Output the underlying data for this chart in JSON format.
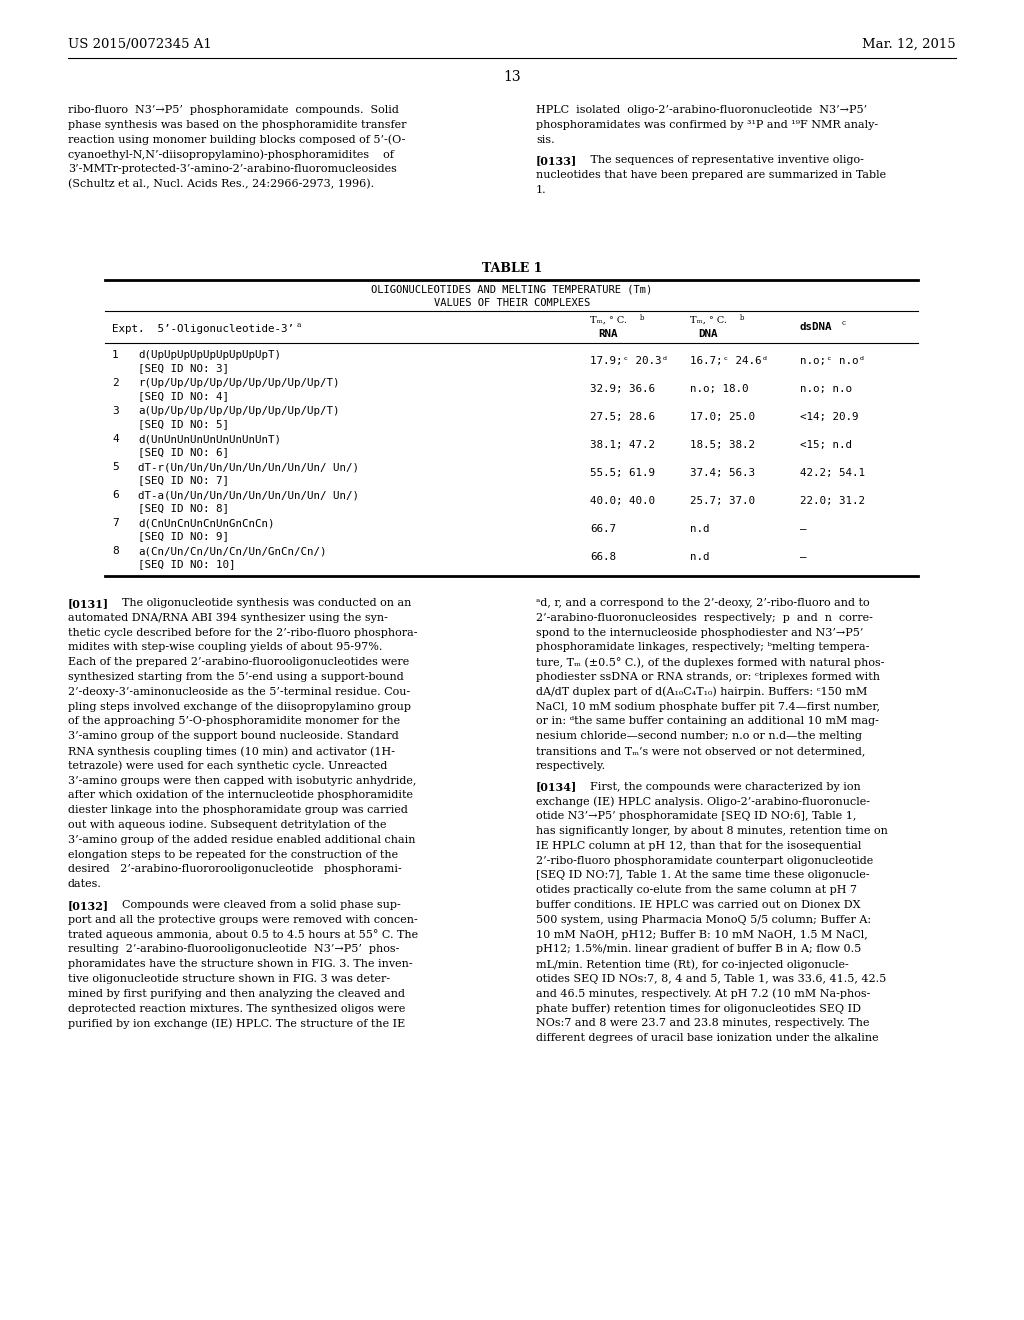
{
  "bg_color": "#ffffff",
  "header_left": "US 2015/0072345 A1",
  "header_right": "Mar. 12, 2015",
  "page_number": "13",
  "left_col_top": [
    "ribo-fluoro  N3’→P5’  phosphoramidate  compounds.  Solid",
    "phase synthesis was based on the phosphoramidite transfer",
    "reaction using monomer building blocks composed of 5’-(O-",
    "cyanoethyl-N,N’-diisopropylamino)-phosphoramidites    of",
    "3’-MMTr-protected-3’-amino-2’-arabino-fluoromucleosides",
    "(Schultz et al., Nucl. Acids Res., 24:2966-2973, 1996)."
  ],
  "right_col_top_p133_pre": [
    "HPLC  isolated  oligo-2’-arabino-fluoronucleotide  N3’→P5’",
    "phosphoramidates was confirmed by ³¹P and ¹⁹F NMR analy-",
    "sis."
  ],
  "right_col_top_p133": [
    "[0133]    The sequences of representative inventive oligo-",
    "nucleotides that have been prepared are summarized in Table",
    "1."
  ],
  "table_title": "TABLE 1",
  "table_subtitle1": "OLIGONUCLEOTIDES AND MELTING TEMPERATURE (Tm)",
  "table_subtitle2": "VALUES OF THEIR COMPLEXES",
  "table_rows": [
    {
      "num": "1",
      "seq1": "d(UpUpUpUpUpUpUpUpUpT)",
      "seq2": "[SEQ ID NO: 3]",
      "rna": "17.9;ᶜ 20.3ᵈ",
      "dna": "16.7;ᶜ 24.6ᵈ",
      "dsdna": "n.o;ᶜ n.oᵈ"
    },
    {
      "num": "2",
      "seq1": "r(Up/Up/Up/Up/Up/Up/Up/Up/Up/T)",
      "seq2": "[SEQ ID NO: 4]",
      "rna": "32.9; 36.6",
      "dna": "n.o; 18.0",
      "dsdna": "n.o; n.o"
    },
    {
      "num": "3",
      "seq1": "a(Up/Up/Up/Up/Up/Up/Up/Up/Up/T)",
      "seq2": "[SEQ ID NO: 5]",
      "rna": "27.5; 28.6",
      "dna": "17.0; 25.0",
      "dsdna": "<14; 20.9"
    },
    {
      "num": "4",
      "seq1": "d(UnUnUnUnUnUnUnUnUnT)",
      "seq2": "[SEQ ID NO: 6]",
      "rna": "38.1; 47.2",
      "dna": "18.5; 38.2",
      "dsdna": "<15; n.d"
    },
    {
      "num": "5",
      "seq1": "dT-r(Un/Un/Un/Un/Un/Un/Un/Un/ Un/)",
      "seq2": "[SEQ ID NO: 7]",
      "rna": "55.5; 61.9",
      "dna": "37.4; 56.3",
      "dsdna": "42.2; 54.1"
    },
    {
      "num": "6",
      "seq1": "dT-a(Un/Un/Un/Un/Un/Un/Un/Un/ Un/)",
      "seq2": "[SEQ ID NO: 8]",
      "rna": "40.0; 40.0",
      "dna": "25.7; 37.0",
      "dsdna": "22.0; 31.2"
    },
    {
      "num": "7",
      "seq1": "d(CnUnCnUnCnUnGnCnCn)",
      "seq2": "[SEQ ID NO: 9]",
      "rna": "66.7",
      "dna": "n.d",
      "dsdna": "—"
    },
    {
      "num": "8",
      "seq1": "a(Cn/Un/Cn/Un/Cn/Un/GnCn/Cn/)",
      "seq2": "[SEQ ID NO: 10]",
      "rna": "66.8",
      "dna": "n.d",
      "dsdna": "—"
    }
  ],
  "left_col_bottom_p131": [
    "The oligonucleotide synthesis was conducted on an",
    "automated DNA/RNA ABI 394 synthesizer using the syn-",
    "thetic cycle described before for the 2’-ribo-fluoro phosphora-",
    "midites with step-wise coupling yields of about 95-97%.",
    "Each of the prepared 2’-arabino-fluorooligonucleotides were",
    "synthesized starting from the 5’-end using a support-bound",
    "2’-deoxy-3’-aminonucleoside as the 5’-terminal residue. Cou-",
    "pling steps involved exchange of the diisopropylamino group",
    "of the approaching 5’-O-phosphoramidite monomer for the",
    "3’-amino group of the support bound nucleoside. Standard",
    "RNA synthesis coupling times (10 min) and activator (1H-",
    "tetrazole) were used for each synthetic cycle. Unreacted",
    "3’-amino groups were then capped with isobutyric anhydride,",
    "after which oxidation of the internucleotide phosphoramidite",
    "diester linkage into the phosphoramidate group was carried",
    "out with aqueous iodine. Subsequent detritylation of the",
    "3’-amino group of the added residue enabled additional chain",
    "elongation steps to be repeated for the construction of the",
    "desired   2’-arabino-fluororooligonucleotide   phosphorami-",
    "dates."
  ],
  "left_col_bottom_p132": [
    "Compounds were cleaved from a solid phase sup-",
    "port and all the protective groups were removed with concen-",
    "trated aqueous ammonia, about 0.5 to 4.5 hours at 55° C. The",
    "resulting  2’-arabino-fluorooligonucleotide  N3’→P5’  phos-",
    "phoramidates have the structure shown in FIG. 3. The inven-",
    "tive oligonucleotide structure shown in FIG. 3 was deter-",
    "mined by first purifying and then analyzing the cleaved and",
    "deprotected reaction mixtures. The synthesized oligos were",
    "purified by ion exchange (IE) HPLC. The structure of the IE"
  ],
  "right_col_bottom_footnote": [
    "ᵃd, r, and a correspond to the 2’-deoxy, 2’-ribo-fluoro and to",
    "2’-arabino-fluoronucleosides  respectively;  p  and  n  corre-",
    "spond to the internucleoside phosphodiester and N3’→P5’",
    "phosphoramidate linkages, respectively; ᵇmelting tempera-",
    "ture, Tₘ (±0.5° C.), of the duplexes formed with natural phos-",
    "phodiester ssDNA or RNA strands, or: ᶜtriplexes formed with",
    "dA/dT duplex part of d(A₁₀C₄T₁₀) hairpin. Buffers: ᶜ150 mM",
    "NaCl, 10 mM sodium phosphate buffer pit 7.4—first number,",
    "or in: ᵈthe same buffer containing an additional 10 mM mag-",
    "nesium chloride—second number; n.o or n.d—the melting",
    "transitions and Tₘ’s were not observed or not determined,",
    "respectively."
  ],
  "right_col_bottom_p134": [
    "First, the compounds were characterized by ion",
    "exchange (IE) HPLC analysis. Oligo-2’-arabino-fluoronucle-",
    "otide N3’→P5’ phosphoramidate [SEQ ID NO:6], Table 1,",
    "has significantly longer, by about 8 minutes, retention time on",
    "IE HPLC column at pH 12, than that for the isosequential",
    "2’-ribo-fluoro phosphoramidate counterpart oligonucleotide",
    "[SEQ ID NO:7], Table 1. At the same time these oligonucle-",
    "otides practically co-elute from the same column at pH 7",
    "buffer conditions. IE HPLC was carried out on Dionex DX",
    "500 system, using Pharmacia MonoQ 5/5 column; Buffer A:",
    "10 mM NaOH, pH12; Buffer B: 10 mM NaOH, 1.5 M NaCl,",
    "pH12; 1.5%/min. linear gradient of buffer B in A; flow 0.5",
    "mL/min. Retention time (Rt), for co-injected oligonucle-",
    "otides SEQ ID NOs:7, 8, 4 and 5, Table 1, was 33.6, 41.5, 42.5",
    "and 46.5 minutes, respectively. At pH 7.2 (10 mM Na-phos-",
    "phate buffer) retention times for oligonucleotides SEQ ID",
    "NOs:7 and 8 were 23.7 and 23.8 minutes, respectively. The",
    "different degrees of uracil base ionization under the alkaline"
  ]
}
